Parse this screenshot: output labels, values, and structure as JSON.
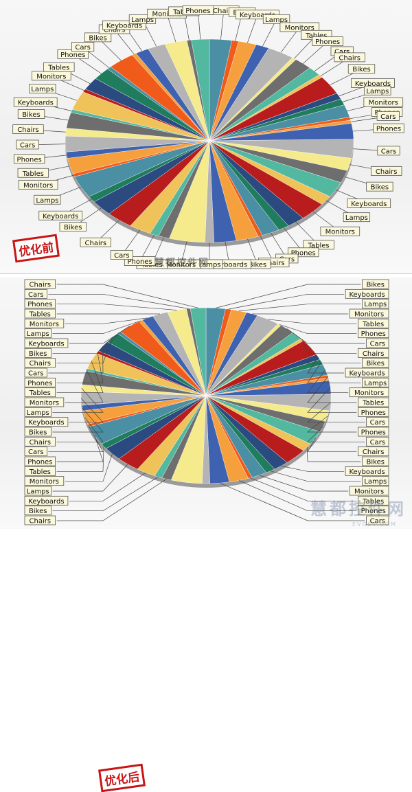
{
  "stamps": {
    "before": "优化前",
    "after": "优化后"
  },
  "watermark": {
    "brand": "慧都控件网",
    "url": "EVGET.COM",
    "mid_brand": "慧都控件网"
  },
  "chart_data": [
    {
      "type": "pie",
      "name": "before",
      "categories": [
        "Chairs",
        "Bikes",
        "Keyboards",
        "Lamps",
        "Monitors",
        "Tables",
        "Phones",
        "Cars",
        "Chairs",
        "Bikes",
        "Keyboards",
        "Lamps",
        "Monitors",
        "Phones",
        "Cars",
        "Phones",
        "Cars",
        "Chairs",
        "Bikes",
        "Keyboards",
        "Lamps",
        "Monitors",
        "Tables",
        "Phones",
        "Cars",
        "Chairs",
        "Bikes",
        "Keyboards",
        "Lamps",
        "Monitors",
        "Tables",
        "Phones",
        "Cars",
        "Chairs",
        "Bikes",
        "Keyboards",
        "Lamps",
        "Monitors",
        "Tables",
        "Phones",
        "Cars",
        "Chairs",
        "Bikes",
        "Keyboards",
        "Lamps",
        "Monitors",
        "Tables",
        "Phones",
        "Cars",
        "Bikes",
        "Chairs",
        "Keyboards",
        "Lamps",
        "Monitors",
        "Tables",
        "Phones"
      ],
      "values": [
        5,
        1.5,
        4,
        3,
        6,
        1,
        4,
        3,
        1,
        6,
        2,
        2,
        4,
        1,
        1,
        5,
        6,
        4,
        4,
        5,
        3,
        6,
        4,
        2.5,
        4,
        1,
        5,
        5,
        2,
        8,
        2.5,
        2,
        5,
        6,
        5,
        2,
        7,
        1,
        5,
        2,
        5,
        2.5,
        5,
        1,
        6,
        1,
        4,
        4,
        1,
        6,
        1,
        3,
        4,
        5,
        1,
        4
      ],
      "colors": [
        "#4a8fa3",
        "#f05a1a",
        "#f5a03c",
        "#3f62b0",
        "#b4b4b4",
        "#f5ea8c",
        "#6e6e6e",
        "#52b8a0",
        "#f0c35a",
        "#b81c1c",
        "#2a4a80",
        "#1f7d5e"
      ]
    },
    {
      "type": "pie",
      "name": "after",
      "left_labels": [
        "Chairs",
        "Cars",
        "Phones",
        "Tables",
        "Monitors",
        "Lamps",
        "Keyboards",
        "Bikes",
        "Chairs",
        "Cars",
        "Phones",
        "Tables",
        "Monitors",
        "Lamps",
        "Keyboards",
        "Bikes",
        "Chairs",
        "Cars",
        "Phones",
        "Tables",
        "Monitors",
        "Lamps",
        "Keyboards",
        "Bikes",
        "Chairs"
      ],
      "right_labels": [
        "Bikes",
        "Keyboards",
        "Lamps",
        "Monitors",
        "Tables",
        "Phones",
        "Cars",
        "Chairs",
        "Bikes",
        "Keyboards",
        "Lamps",
        "Monitors",
        "Tables",
        "Phones",
        "Cars",
        "Phones",
        "Cars",
        "Chairs",
        "Bikes",
        "Keyboards",
        "Lamps",
        "Monitors",
        "Tables",
        "Phones",
        "Cars"
      ]
    }
  ]
}
